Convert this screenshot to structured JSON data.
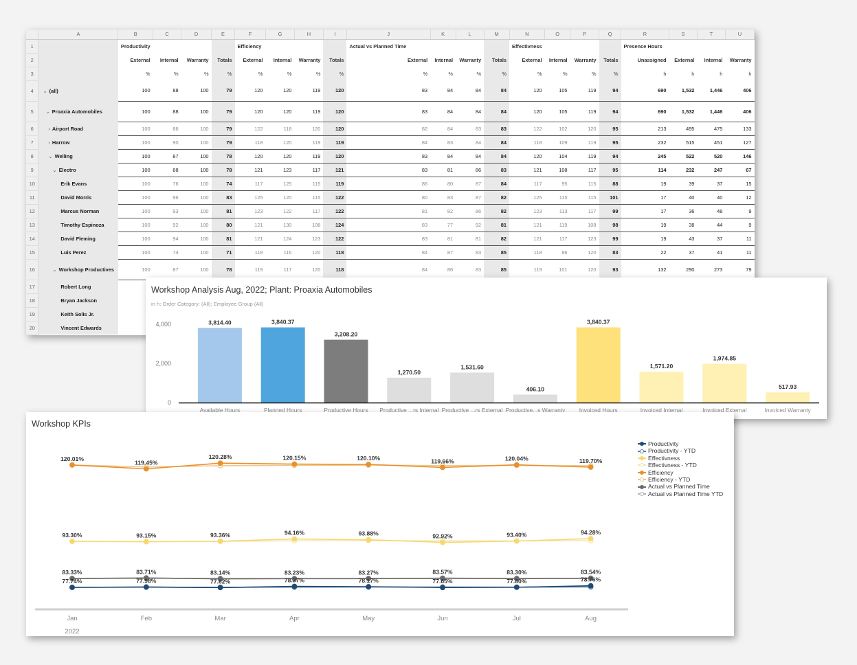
{
  "sheet": {
    "col_letters": [
      "A",
      "B",
      "C",
      "D",
      "E",
      "F",
      "G",
      "H",
      "I",
      "J",
      "K",
      "L",
      "M",
      "N",
      "O",
      "P",
      "Q",
      "R",
      "S",
      "T",
      "U"
    ],
    "row1": [
      "Productivity",
      "Efficiency",
      "Actual vs Planned Time",
      "Effectivness",
      "Presence Hours"
    ],
    "row2": [
      "External",
      "Internal",
      "Warranty",
      "Totals",
      "External",
      "Internal",
      "Warranty",
      "Totals",
      "External",
      "Internal",
      "Warranty",
      "Totals",
      "External",
      "Internal",
      "Warranty",
      "Totals",
      "Unassigned",
      "External",
      "Internal",
      "Warranty"
    ],
    "row3": [
      "%",
      "%",
      "%",
      "%",
      "%",
      "%",
      "%",
      "%",
      "%",
      "%",
      "%",
      "%",
      "%",
      "%",
      "%",
      "%",
      "h",
      "h",
      "h",
      "h"
    ],
    "rows": [
      {
        "num": "4",
        "label": "(all)",
        "v": [
          "100",
          "88",
          "100",
          "79",
          "120",
          "120",
          "119",
          "120",
          "83",
          "84",
          "84",
          "84",
          "120",
          "105",
          "119",
          "94",
          "690",
          "1,532",
          "1,446",
          "406"
        ]
      },
      {
        "num": "5",
        "label": "Proaxia Automobiles",
        "v": [
          "100",
          "88",
          "100",
          "79",
          "120",
          "120",
          "119",
          "120",
          "83",
          "84",
          "84",
          "84",
          "120",
          "105",
          "119",
          "94",
          "690",
          "1,532",
          "1,446",
          "406"
        ]
      },
      {
        "num": "6",
        "label": "Airport Road",
        "v": [
          "100",
          "86",
          "100",
          "79",
          "122",
          "118",
          "120",
          "120",
          "82",
          "84",
          "83",
          "83",
          "122",
          "102",
          "120",
          "95",
          "213",
          "495",
          "475",
          "133"
        ]
      },
      {
        "num": "7",
        "label": "Harrow",
        "v": [
          "100",
          "90",
          "100",
          "79",
          "118",
          "120",
          "119",
          "119",
          "84",
          "83",
          "84",
          "84",
          "118",
          "109",
          "119",
          "95",
          "232",
          "515",
          "451",
          "127"
        ]
      },
      {
        "num": "8",
        "label": "Welling",
        "v": [
          "100",
          "87",
          "100",
          "78",
          "120",
          "120",
          "119",
          "120",
          "83",
          "84",
          "84",
          "84",
          "120",
          "104",
          "119",
          "94",
          "245",
          "522",
          "520",
          "146"
        ]
      },
      {
        "num": "9",
        "label": "Electro",
        "v": [
          "100",
          "88",
          "100",
          "78",
          "121",
          "123",
          "117",
          "121",
          "83",
          "81",
          "86",
          "83",
          "121",
          "108",
          "117",
          "95",
          "114",
          "232",
          "247",
          "67"
        ]
      },
      {
        "num": "10",
        "label": "Erik Evans",
        "v": [
          "100",
          "76",
          "100",
          "74",
          "117",
          "125",
          "115",
          "119",
          "86",
          "80",
          "87",
          "84",
          "117",
          "95",
          "115",
          "88",
          "19",
          "39",
          "37",
          "15"
        ]
      },
      {
        "num": "11",
        "label": "David Morris",
        "v": [
          "100",
          "96",
          "100",
          "83",
          "125",
          "120",
          "115",
          "122",
          "80",
          "83",
          "87",
          "82",
          "125",
          "115",
          "115",
          "101",
          "17",
          "40",
          "40",
          "12"
        ]
      },
      {
        "num": "12",
        "label": "Marcus Norman",
        "v": [
          "100",
          "93",
          "100",
          "81",
          "123",
          "122",
          "117",
          "122",
          "81",
          "82",
          "86",
          "82",
          "123",
          "113",
          "117",
          "99",
          "17",
          "36",
          "48",
          "9"
        ]
      },
      {
        "num": "13",
        "label": "Timothy Espinoza",
        "v": [
          "100",
          "92",
          "100",
          "80",
          "121",
          "130",
          "108",
          "124",
          "83",
          "77",
          "92",
          "81",
          "121",
          "119",
          "108",
          "98",
          "19",
          "38",
          "44",
          "9"
        ]
      },
      {
        "num": "14",
        "label": "David Fleming",
        "v": [
          "100",
          "94",
          "100",
          "81",
          "121",
          "124",
          "123",
          "122",
          "83",
          "81",
          "81",
          "82",
          "121",
          "117",
          "123",
          "99",
          "19",
          "43",
          "37",
          "11"
        ]
      },
      {
        "num": "15",
        "label": "Luis Perez",
        "v": [
          "100",
          "74",
          "100",
          "71",
          "118",
          "116",
          "120",
          "118",
          "84",
          "87",
          "83",
          "85",
          "118",
          "86",
          "120",
          "83",
          "22",
          "37",
          "41",
          "11"
        ]
      },
      {
        "num": "16",
        "label": "Workshop Productives",
        "v": [
          "100",
          "87",
          "100",
          "78",
          "119",
          "117",
          "120",
          "118",
          "84",
          "86",
          "83",
          "85",
          "119",
          "101",
          "120",
          "93",
          "132",
          "290",
          "273",
          "79"
        ]
      },
      {
        "num": "17",
        "label": "Robert Long",
        "v": [
          "",
          "",
          "",
          "",
          "",
          "",
          "",
          "",
          "",
          "",
          "",
          "",
          "",
          "",
          "",
          "",
          "",
          "",
          "",
          ""
        ]
      },
      {
        "num": "18",
        "label": "Bryan Jackson",
        "v": [
          "",
          "",
          "",
          "",
          "",
          "",
          "",
          "",
          "",
          "",
          "",
          "",
          "",
          "",
          "",
          "",
          "",
          "",
          "",
          ""
        ]
      },
      {
        "num": "19",
        "label": "Keith Solis Jr.",
        "v": [
          "",
          "",
          "",
          "",
          "",
          "",
          "",
          "",
          "",
          "",
          "",
          "",
          "",
          "",
          "",
          "",
          "",
          "",
          "",
          ""
        ]
      },
      {
        "num": "20",
        "label": "Vincent Edwards",
        "v": [
          "",
          "",
          "",
          "",
          "",
          "",
          "",
          "",
          "",
          "",
          "",
          "",
          "",
          "",
          "",
          "",
          "",
          "",
          "",
          ""
        ]
      }
    ]
  },
  "bar_chart": {
    "title": "Workshop Analysis Aug, 2022; Plant: Proaxia Automobiles",
    "subtitle": "in h; Order Category: (All); Employee Group (All)",
    "chart_data": {
      "type": "bar",
      "categories": [
        "Available Hours",
        "Planned Hours",
        "Productive Hours",
        "Productive ...rs Internal",
        "Productive ...rs External",
        "Productive...s Warranty",
        "Invoiced Hours",
        "Invoiced Internal",
        "Invoiced External",
        "Invoiced Warranty"
      ],
      "values": [
        3814.4,
        3840.37,
        3208.2,
        1270.5,
        1531.6,
        406.1,
        3840.37,
        1571.2,
        1974.85,
        517.93
      ],
      "value_labels": [
        "3,814.40",
        "3,840.37",
        "3,208.20",
        "1,270.50",
        "1,531.60",
        "406.10",
        "3,840.37",
        "1,571.20",
        "1,974.85",
        "517.93"
      ],
      "colors": [
        "#a3c8ec",
        "#4fa5de",
        "#7d7d7d",
        "#dedede",
        "#dedede",
        "#dedede",
        "#fee17a",
        "#fff0b3",
        "#fff0b3",
        "#fff0b3"
      ],
      "ylim": [
        0,
        4000
      ],
      "yticks": [
        "4,000",
        "2,000",
        "0"
      ],
      "ytick_values": [
        4000,
        2000,
        0
      ]
    }
  },
  "kpi_chart": {
    "title": "Workshop KPIs",
    "chart_data": {
      "type": "line",
      "x": [
        "Jan",
        "Feb",
        "Mar",
        "Apr",
        "May",
        "Jun",
        "Jul",
        "Aug"
      ],
      "year_label": "2022",
      "series": [
        {
          "name": "Productivity",
          "color": "#1f4a74",
          "fill": "#1f4a74",
          "values": [
            77.74,
            77.98,
            77.62,
            78.37,
            78.17,
            77.65,
            77.8,
            78.76
          ],
          "labels": [
            "77.74%",
            "77.98%",
            "77.62%",
            "78.37%",
            "78.17%",
            "77.65%",
            "77.80%",
            "78.76%"
          ]
        },
        {
          "name": "Productivity - YTD",
          "color": "#5a7fa3",
          "fill": "#ffffff",
          "values": [
            77.74,
            77.86,
            77.78,
            77.93,
            77.98,
            77.92,
            77.9,
            78.01
          ],
          "labels": []
        },
        {
          "name": "Effectivness",
          "color": "#f8d86e",
          "fill": "#f8d86e",
          "values": [
            93.3,
            93.15,
            93.36,
            94.16,
            93.88,
            92.92,
            93.4,
            94.28
          ],
          "labels": [
            "93.30%",
            "93.15%",
            "93.36%",
            "94.16%",
            "93.88%",
            "92.92%",
            "93.40%",
            "94.28%"
          ]
        },
        {
          "name": "Effectivness - YTD",
          "color": "#f3e6b5",
          "fill": "#ffffff",
          "values": [
            93.3,
            93.22,
            93.27,
            93.49,
            93.57,
            93.46,
            93.45,
            93.55
          ],
          "labels": []
        },
        {
          "name": "Efficiency",
          "color": "#e8902c",
          "fill": "#e8902c",
          "values": [
            120.01,
            119.45,
            120.28,
            120.15,
            120.1,
            119.66,
            120.04,
            119.7
          ],
          "labels": [
            "120.01%",
            "119.45%",
            "120.28%",
            "120.15%",
            "120.10%",
            "119.66%",
            "120.04%",
            "119.70%"
          ]
        },
        {
          "name": "Efficiency - YTD",
          "color": "#f0c88d",
          "fill": "#ffffff",
          "values": [
            120.01,
            119.73,
            119.91,
            119.97,
            119.99,
            119.93,
            119.94,
            119.91
          ],
          "labels": []
        },
        {
          "name": "Actual vs Planned Time",
          "color": "#6a6a6a",
          "fill": "#6a6a6a",
          "values": [
            83.33,
            83.71,
            83.14,
            83.23,
            83.27,
            83.57,
            83.3,
            83.54
          ],
          "labels": [
            "83.33%",
            "83.71%",
            "83.14%",
            "83.23%",
            "83.27%",
            "83.57%",
            "83.30%",
            "83.54%"
          ]
        },
        {
          "name": "Actual vs Planned Time YTD",
          "color": "#b4b4b4",
          "fill": "#ffffff",
          "values": [
            83.33,
            83.52,
            83.39,
            83.35,
            83.34,
            83.38,
            83.37,
            83.39
          ],
          "labels": []
        }
      ]
    }
  }
}
